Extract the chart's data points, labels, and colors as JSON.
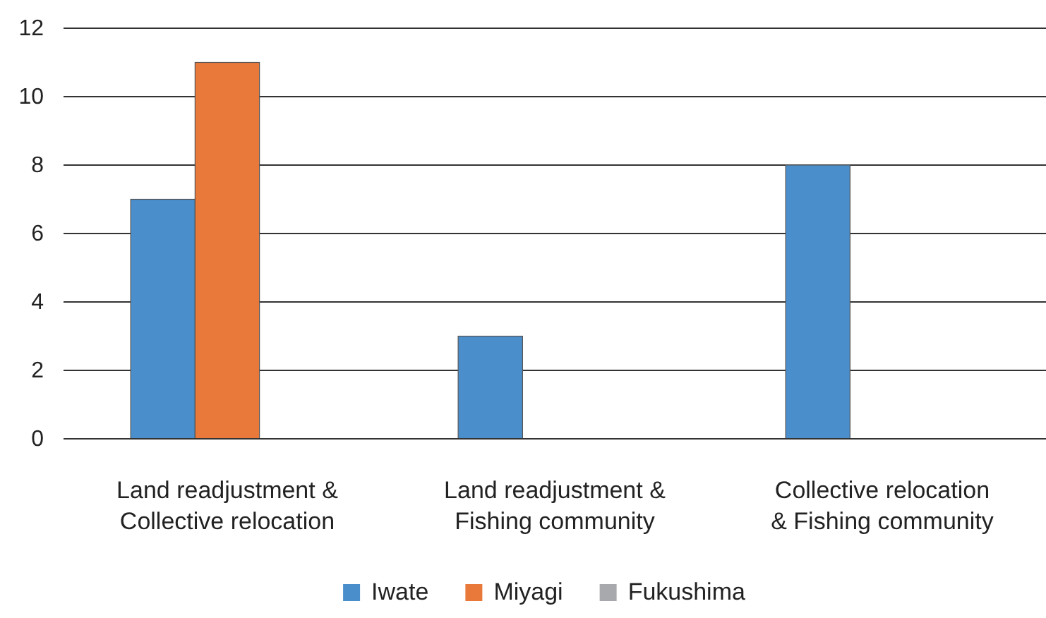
{
  "chart_data": {
    "type": "bar",
    "categories": [
      "Land readjustment &\nCollective relocation",
      "Land readjustment &\nFishing community",
      "Collective relocation\n& Fishing community"
    ],
    "series": [
      {
        "name": "Iwate",
        "color": "#4a8ecb",
        "values": [
          7,
          3,
          8
        ]
      },
      {
        "name": "Miyagi",
        "color": "#e8793a",
        "values": [
          11,
          0,
          0
        ]
      },
      {
        "name": "Fukushima",
        "color": "#a7a9ac",
        "values": [
          0,
          0,
          0
        ]
      }
    ],
    "ylim": [
      0,
      12
    ],
    "yticks": [
      0,
      2,
      4,
      6,
      8,
      10,
      12
    ],
    "grid": "y",
    "legend": "bottom"
  }
}
